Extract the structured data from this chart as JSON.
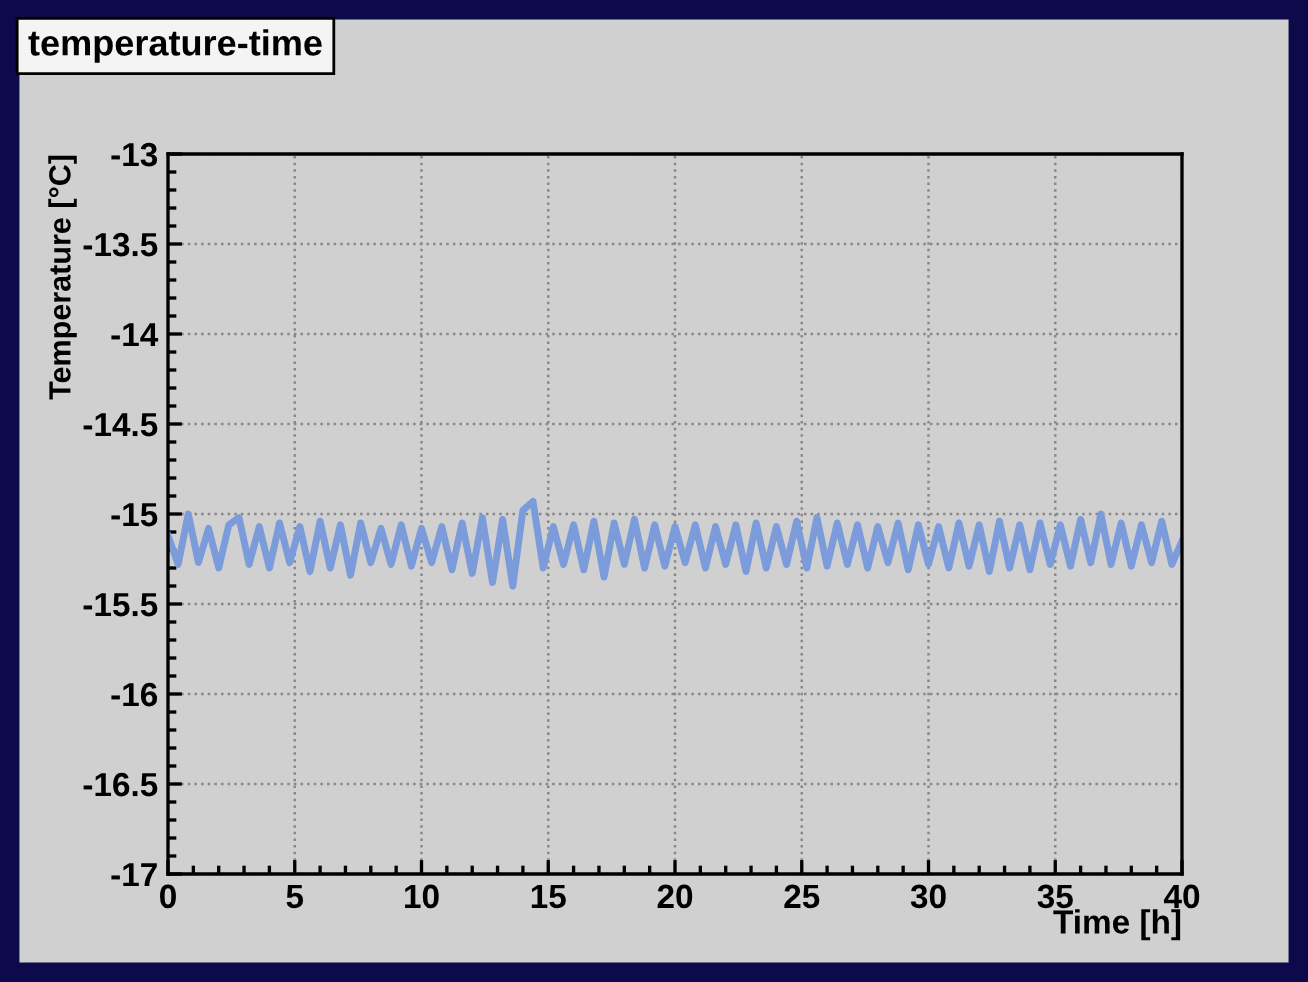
{
  "chart_data": {
    "type": "line",
    "title": "temperature-time",
    "xlabel": "Time [h]",
    "ylabel": "Temperature [°C]",
    "xlim": [
      0,
      40
    ],
    "ylim": [
      -17,
      -13
    ],
    "xticks": [
      0,
      5,
      10,
      15,
      20,
      25,
      30,
      35,
      40
    ],
    "yticks": [
      -17,
      -16.5,
      -16,
      -15.5,
      -15,
      -14.5,
      -14,
      -13.5,
      -13
    ],
    "grid": true,
    "marker": "none",
    "line_style": "solid",
    "x": [
      0,
      0.4,
      0.8,
      1.2,
      1.6,
      2.0,
      2.4,
      2.8,
      3.2,
      3.6,
      4.0,
      4.4,
      4.8,
      5.2,
      5.6,
      6.0,
      6.4,
      6.8,
      7.2,
      7.6,
      8.0,
      8.4,
      8.8,
      9.2,
      9.6,
      10.0,
      10.4,
      10.8,
      11.2,
      11.6,
      12.0,
      12.4,
      12.8,
      13.2,
      13.6,
      14.0,
      14.4,
      14.8,
      15.2,
      15.6,
      16.0,
      16.4,
      16.8,
      17.2,
      17.6,
      18.0,
      18.4,
      18.8,
      19.2,
      19.6,
      20.0,
      20.4,
      20.8,
      21.2,
      21.6,
      22.0,
      22.4,
      22.8,
      23.2,
      23.6,
      24.0,
      24.4,
      24.8,
      25.2,
      25.6,
      26.0,
      26.4,
      26.8,
      27.2,
      27.6,
      28.0,
      28.4,
      28.8,
      29.2,
      29.6,
      30.0,
      30.4,
      30.8,
      31.2,
      31.6,
      32.0,
      32.4,
      32.8,
      33.2,
      33.6,
      34.0,
      34.4,
      34.8,
      35.2,
      35.6,
      36.0,
      36.4,
      36.8,
      37.2,
      37.6,
      38.0,
      38.4,
      38.8,
      39.2,
      39.6,
      40.0
    ],
    "series": [
      {
        "color": "#7b9bdb",
        "values": [
          -15.12,
          -15.28,
          -15.0,
          -15.27,
          -15.08,
          -15.3,
          -15.06,
          -15.02,
          -15.28,
          -15.07,
          -15.3,
          -15.05,
          -15.27,
          -15.07,
          -15.32,
          -15.04,
          -15.3,
          -15.06,
          -15.34,
          -15.05,
          -15.27,
          -15.08,
          -15.28,
          -15.06,
          -15.29,
          -15.08,
          -15.27,
          -15.07,
          -15.31,
          -15.05,
          -15.33,
          -15.02,
          -15.38,
          -15.03,
          -15.4,
          -14.98,
          -14.93,
          -15.3,
          -15.07,
          -15.28,
          -15.06,
          -15.31,
          -15.04,
          -15.35,
          -15.05,
          -15.28,
          -15.03,
          -15.3,
          -15.06,
          -15.29,
          -15.07,
          -15.27,
          -15.06,
          -15.3,
          -15.07,
          -15.28,
          -15.06,
          -15.32,
          -15.05,
          -15.3,
          -15.07,
          -15.28,
          -15.04,
          -15.3,
          -15.02,
          -15.29,
          -15.05,
          -15.28,
          -15.06,
          -15.3,
          -15.07,
          -15.27,
          -15.05,
          -15.31,
          -15.06,
          -15.28,
          -15.07,
          -15.3,
          -15.05,
          -15.29,
          -15.06,
          -15.32,
          -15.04,
          -15.3,
          -15.06,
          -15.31,
          -15.05,
          -15.28,
          -15.06,
          -15.29,
          -15.03,
          -15.27,
          -15.0,
          -15.28,
          -15.05,
          -15.29,
          -15.06,
          -15.27,
          -15.04,
          -15.28,
          -15.15
        ]
      }
    ]
  }
}
